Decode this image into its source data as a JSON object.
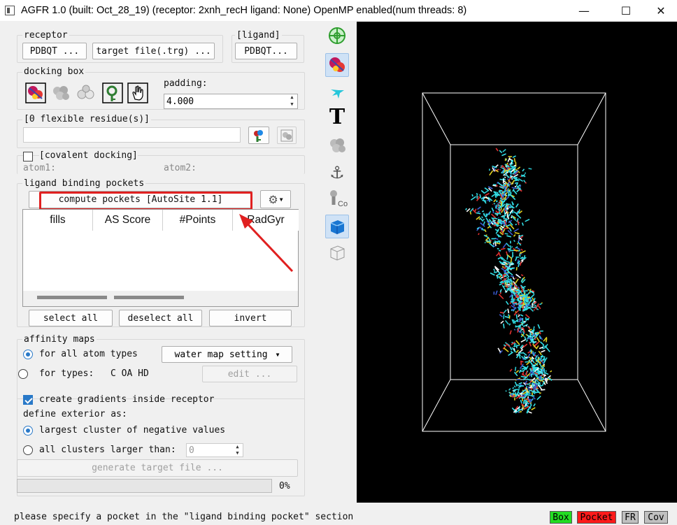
{
  "window": {
    "title": "AGFR 1.0 (built: Oct_28_19) (receptor: 2xnh_recH ligand: None) OpenMP enabled(num threads: 8)",
    "minimize": "—",
    "maximize": "☐",
    "close": "✕"
  },
  "receptor": {
    "label": "receptor",
    "pdbqt_button": "PDBQT ...",
    "target_button": "target file(.trg) ..."
  },
  "ligand": {
    "label": "[ligand]",
    "pdbqt_button": "PDBQT..."
  },
  "docking_box": {
    "label": "docking box",
    "padding_label": "padding:",
    "padding_value": "4.000",
    "tools": [
      "molecule-box-icon",
      "atoms-box-icon",
      "spheres-box-icon",
      "residue-pick-box-icon",
      "hand-pick-box-icon"
    ]
  },
  "flexible": {
    "label": "[0 flexible residue(s)]",
    "value": ""
  },
  "covalent": {
    "label": "[covalent docking]",
    "atom1": "atom1:",
    "atom2": "atom2:",
    "checked": false
  },
  "pockets": {
    "label": "ligand binding pockets",
    "compute_button": "compute pockets [AutoSite 1.1]",
    "columns": [
      "fills",
      "AS Score",
      "#Points",
      "RadGyr"
    ],
    "select_all": "select all",
    "deselect_all": "deselect all",
    "invert": "invert",
    "highlight_color": "#e02020"
  },
  "affinity": {
    "label": "affinity maps",
    "all_atoms": "for all atom types",
    "water_setting": "water map setting",
    "for_types": "for types:",
    "types_value": "C OA HD",
    "edit_button": "edit ...",
    "create_gradients": "create gradients inside receptor",
    "define_exterior": "define exterior as:",
    "largest_cluster": "largest cluster of negative values",
    "all_clusters": "all clusters larger than:",
    "clusters_value": "0",
    "generate_button": "generate target file ...",
    "progress_text": "0%",
    "progress_value": 0
  },
  "toolbar": [
    "target-icon",
    "molecule-icon",
    "ribbon-icon",
    "text-T-icon",
    "atoms-icon",
    "anchor-icon",
    "cobalt-icon",
    "solid-box-icon",
    "wire-box-icon"
  ],
  "status": {
    "message": "please specify a pocket in the \"ligand binding pocket\" section",
    "box": "Box",
    "pocket": "Pocket",
    "fr": "FR",
    "cov": "Cov",
    "box_color": "#22dd22",
    "pocket_color": "#ff1a1a"
  }
}
